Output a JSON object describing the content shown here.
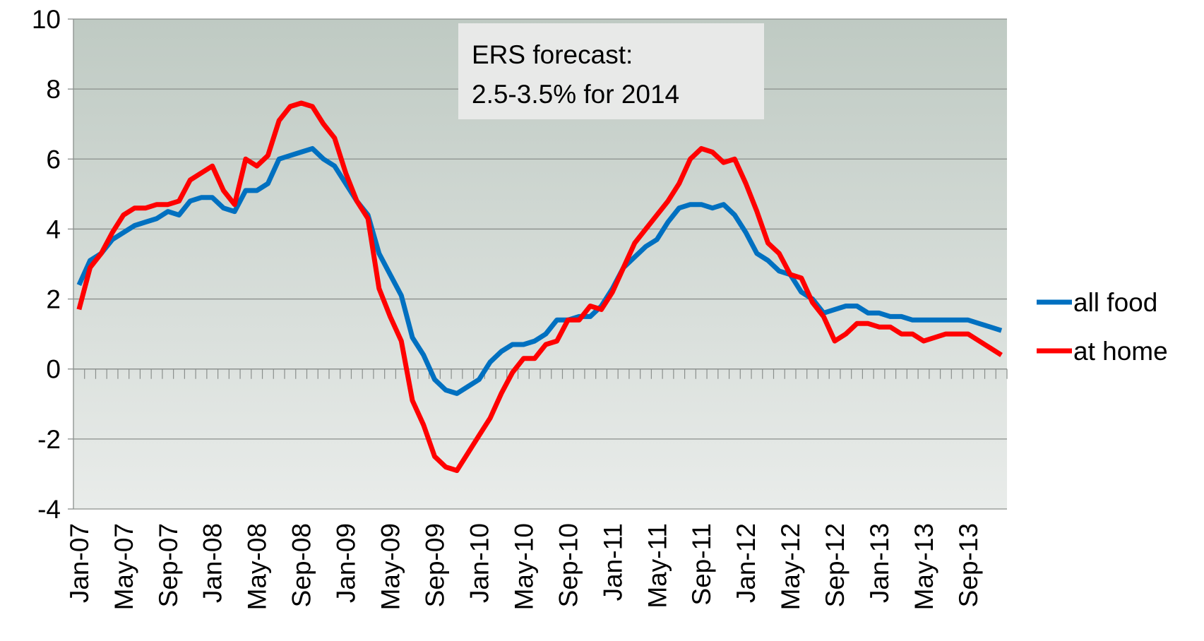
{
  "chart_data": {
    "type": "line",
    "annotation": [
      "ERS forecast:",
      "2.5-3.5% for 2014"
    ],
    "categories": [
      "Jan-07",
      null,
      null,
      null,
      "May-07",
      null,
      null,
      null,
      "Sep-07",
      null,
      null,
      null,
      "Jan-08",
      null,
      null,
      null,
      "May-08",
      null,
      null,
      null,
      "Sep-08",
      null,
      null,
      null,
      "Jan-09",
      null,
      null,
      null,
      "May-09",
      null,
      null,
      null,
      "Sep-09",
      null,
      null,
      null,
      "Jan-10",
      null,
      null,
      null,
      "May-10",
      null,
      null,
      null,
      "Sep-10",
      null,
      null,
      null,
      "Jan-11",
      null,
      null,
      null,
      "May-11",
      null,
      null,
      null,
      "Sep-11",
      null,
      null,
      null,
      "Jan-12",
      null,
      null,
      null,
      "May-12",
      null,
      null,
      null,
      "Sep-12",
      null,
      null,
      null,
      "Jan-13",
      null,
      null,
      null,
      "May-13",
      null,
      null,
      null,
      "Sep-13",
      null,
      null,
      null
    ],
    "series": [
      {
        "name": "all food",
        "color": "#0070c0",
        "values": [
          2.4,
          3.1,
          3.3,
          3.7,
          3.9,
          4.1,
          4.2,
          4.3,
          4.5,
          4.4,
          4.8,
          4.9,
          4.9,
          4.6,
          4.5,
          5.1,
          5.1,
          5.3,
          6.0,
          6.1,
          6.2,
          6.3,
          6.0,
          5.8,
          5.3,
          4.8,
          4.4,
          3.3,
          2.7,
          2.1,
          0.9,
          0.4,
          -0.3,
          -0.6,
          -0.7,
          -0.5,
          -0.3,
          0.2,
          0.5,
          0.7,
          0.7,
          0.8,
          1.0,
          1.4,
          1.4,
          1.5,
          1.5,
          1.8,
          2.3,
          2.9,
          3.2,
          3.5,
          3.7,
          4.2,
          4.6,
          4.7,
          4.7,
          4.6,
          4.7,
          4.4,
          3.9,
          3.3,
          3.1,
          2.8,
          2.7,
          2.2,
          2.0,
          1.6,
          1.7,
          1.8,
          1.8,
          1.6,
          1.6,
          1.5,
          1.5,
          1.4,
          1.4,
          1.4,
          1.4,
          1.4,
          1.4,
          1.3,
          1.2,
          1.1
        ]
      },
      {
        "name": "at home",
        "color": "#ff0000",
        "values": [
          1.7,
          2.9,
          3.3,
          3.9,
          4.4,
          4.6,
          4.6,
          4.7,
          4.7,
          4.8,
          5.4,
          5.6,
          5.8,
          5.1,
          4.7,
          6.0,
          5.8,
          6.1,
          7.1,
          7.5,
          7.6,
          7.5,
          7.0,
          6.6,
          5.6,
          4.8,
          4.3,
          2.3,
          1.5,
          0.8,
          -0.9,
          -1.6,
          -2.5,
          -2.8,
          -2.9,
          -2.4,
          -1.9,
          -1.4,
          -0.7,
          -0.1,
          0.3,
          0.3,
          0.7,
          0.8,
          1.4,
          1.4,
          1.8,
          1.7,
          2.2,
          2.9,
          3.6,
          4.0,
          4.4,
          4.8,
          5.3,
          6.0,
          6.3,
          6.2,
          5.9,
          6.0,
          5.3,
          4.5,
          3.6,
          3.3,
          2.7,
          2.6,
          1.9,
          1.5,
          0.8,
          1.0,
          1.3,
          1.3,
          1.2,
          1.2,
          1.0,
          1.0,
          0.8,
          0.9,
          1.0,
          1.0,
          1.0,
          0.8,
          0.6,
          0.4
        ]
      }
    ],
    "ylim": [
      -4,
      10
    ],
    "yticks": [
      -4,
      -2,
      0,
      2,
      4,
      6,
      8,
      10
    ],
    "grid": true,
    "legend": "right"
  }
}
